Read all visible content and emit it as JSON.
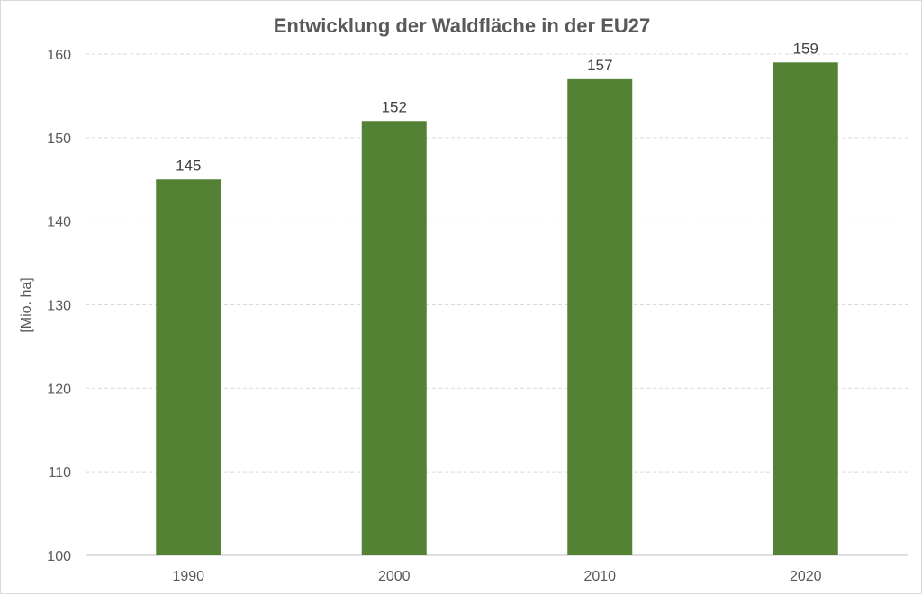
{
  "chart_data": {
    "type": "bar",
    "title": "Entwicklung der Waldfläche in der EU27",
    "xlabel": "",
    "ylabel": "[Mio. ha]",
    "categories": [
      "1990",
      "2000",
      "2010",
      "2020"
    ],
    "values": [
      145,
      152,
      157,
      159
    ],
    "data_labels": [
      "145",
      "152",
      "157",
      "159"
    ],
    "ylim": [
      100,
      160
    ],
    "yticks": [
      100,
      110,
      120,
      130,
      140,
      150,
      160
    ],
    "grid": true,
    "legend": "none",
    "bar_color": "#548235",
    "gridline_color": "#d9d9d9",
    "text_color": "#595959"
  }
}
